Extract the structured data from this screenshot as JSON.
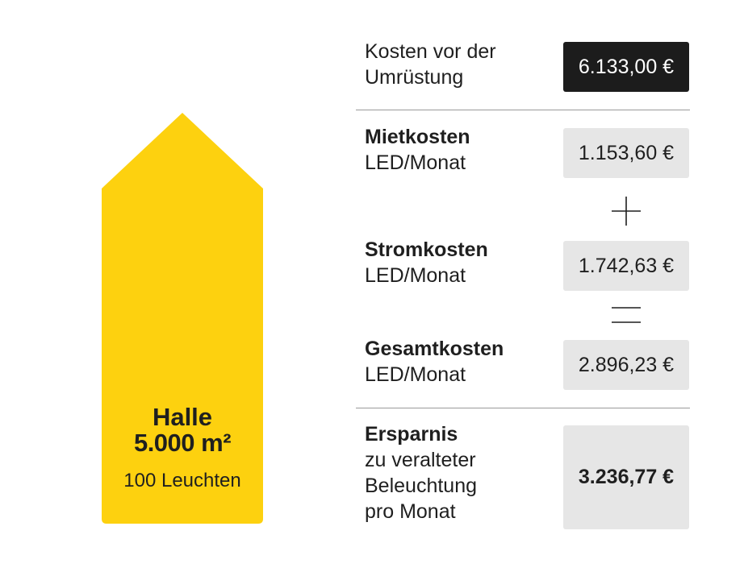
{
  "hall": {
    "title": "Halle",
    "area": "5.000 m²",
    "lights": "100 Leuchten",
    "color": "#fdd10f"
  },
  "rows": {
    "before": {
      "label_line1": "Kosten vor der",
      "label_line2": "Umrüstung",
      "value": "6.133,00 €"
    },
    "rent": {
      "label_bold": "Mietkosten",
      "label_sub": "LED/Monat",
      "value": "1.153,60 €"
    },
    "power": {
      "label_bold": "Stromkosten",
      "label_sub": "LED/Monat",
      "value": "1.742,63 €"
    },
    "total": {
      "label_bold": "Gesamtkosten",
      "label_sub": "LED/Monat",
      "value": "2.896,23 €"
    },
    "savings": {
      "label_bold": "Ersparnis",
      "label_line2": "zu veralteter",
      "label_line3": "Beleuchtung",
      "label_line4": "pro Monat",
      "value": "3.236,77 €"
    }
  },
  "operators": {
    "plus": "plus-icon",
    "equals": "equals-icon"
  },
  "colors": {
    "dark_box": "#1c1c1c",
    "light_box": "#e6e6e6",
    "divider": "#9a9a9a"
  }
}
